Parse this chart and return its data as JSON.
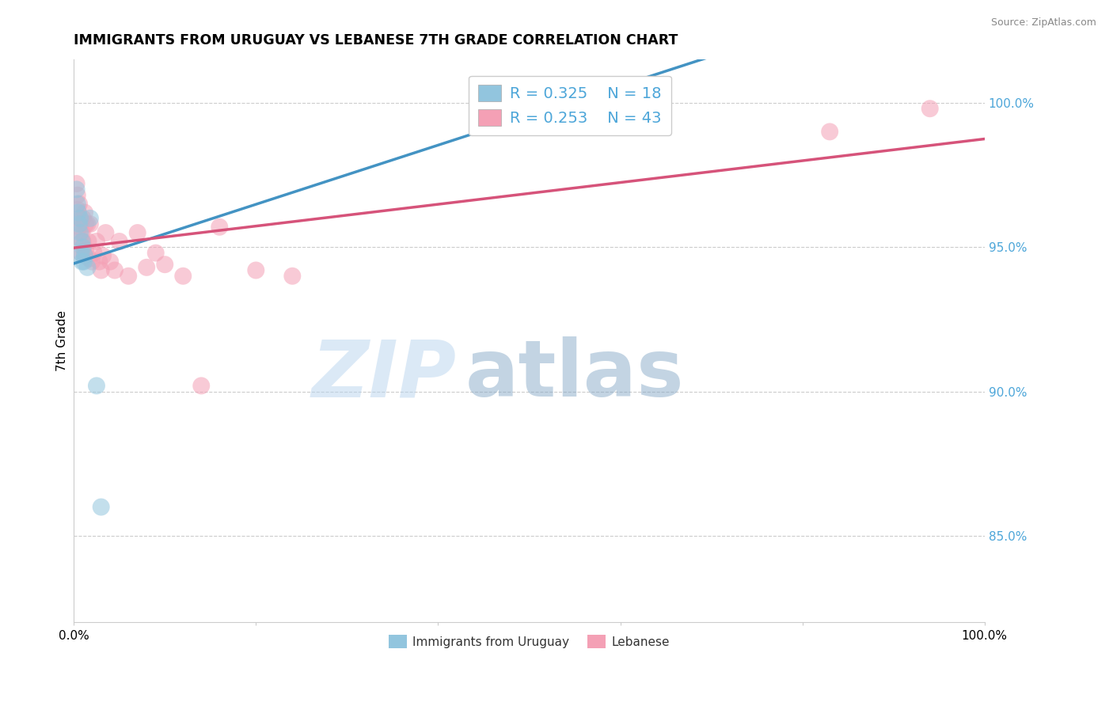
{
  "title": "IMMIGRANTS FROM URUGUAY VS LEBANESE 7TH GRADE CORRELATION CHART",
  "source_text": "Source: ZipAtlas.com",
  "ylabel": "7th Grade",
  "xlim": [
    0.0,
    1.0
  ],
  "ylim": [
    0.82,
    1.015
  ],
  "y_ticks_right": [
    0.85,
    0.9,
    0.95,
    1.0
  ],
  "y_tick_labels_right": [
    "85.0%",
    "90.0%",
    "95.0%",
    "100.0%"
  ],
  "blue_color": "#92c5de",
  "pink_color": "#f4a0b5",
  "blue_line_color": "#4393c3",
  "pink_line_color": "#d6537a",
  "legend_R_blue": "R = 0.325",
  "legend_N_blue": "N = 18",
  "legend_R_pink": "R = 0.253",
  "legend_N_pink": "N = 43",
  "legend_label_blue": "Immigrants from Uruguay",
  "legend_label_pink": "Lebanese",
  "watermark_zip": "ZIP",
  "watermark_atlas": "atlas",
  "blue_x": [
    0.003,
    0.004,
    0.005,
    0.006,
    0.007,
    0.007,
    0.008,
    0.009,
    0.009,
    0.01,
    0.011,
    0.012,
    0.015,
    0.018,
    0.025,
    0.03,
    0.5,
    0.53
  ],
  "blue_y": [
    0.97,
    0.965,
    0.962,
    0.958,
    0.955,
    0.96,
    0.948,
    0.945,
    0.952,
    0.95,
    0.945,
    0.947,
    0.943,
    0.96,
    0.902,
    0.86,
    1.0,
    1.0
  ],
  "pink_x": [
    0.003,
    0.004,
    0.004,
    0.005,
    0.006,
    0.006,
    0.007,
    0.007,
    0.008,
    0.008,
    0.009,
    0.01,
    0.01,
    0.011,
    0.012,
    0.013,
    0.013,
    0.015,
    0.016,
    0.017,
    0.018,
    0.02,
    0.022,
    0.025,
    0.028,
    0.03,
    0.032,
    0.035,
    0.04,
    0.045,
    0.05,
    0.06,
    0.07,
    0.08,
    0.09,
    0.1,
    0.12,
    0.14,
    0.16,
    0.2,
    0.24,
    0.83,
    0.94
  ],
  "pink_y": [
    0.972,
    0.968,
    0.963,
    0.96,
    0.965,
    0.957,
    0.96,
    0.953,
    0.958,
    0.948,
    0.955,
    0.96,
    0.952,
    0.948,
    0.962,
    0.958,
    0.949,
    0.958,
    0.952,
    0.946,
    0.958,
    0.945,
    0.948,
    0.952,
    0.945,
    0.942,
    0.947,
    0.955,
    0.945,
    0.942,
    0.952,
    0.94,
    0.955,
    0.943,
    0.948,
    0.944,
    0.94,
    0.902,
    0.957,
    0.942,
    0.94,
    0.99,
    0.998
  ],
  "grid_color": "#cccccc",
  "background_color": "#ffffff",
  "title_fontsize": 12.5,
  "axis_fontsize": 11,
  "legend_fontsize": 14
}
